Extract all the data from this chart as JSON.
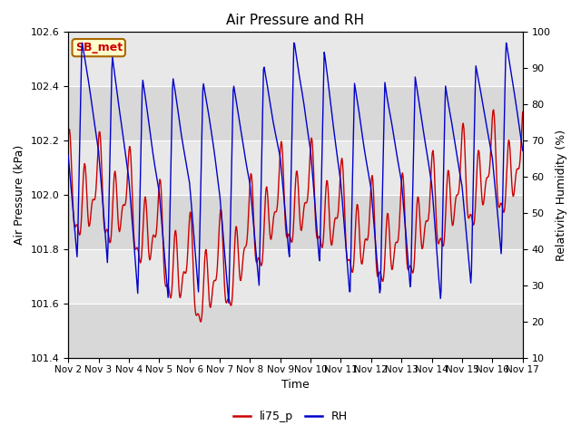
{
  "title": "Air Pressure and RH",
  "xlabel": "Time",
  "ylabel_left": "Air Pressure (kPa)",
  "ylabel_right": "Relativity Humidity (%)",
  "ylim_left": [
    101.4,
    102.6
  ],
  "ylim_right": [
    10,
    100
  ],
  "yticks_left": [
    101.4,
    101.6,
    101.8,
    102.0,
    102.2,
    102.4,
    102.6
  ],
  "yticks_right": [
    10,
    20,
    30,
    40,
    50,
    60,
    70,
    80,
    90,
    100
  ],
  "xtick_labels": [
    "Nov 2",
    "Nov 3",
    "Nov 4",
    "Nov 5",
    "Nov 6",
    "Nov 7",
    "Nov 8",
    "Nov 9",
    "Nov 10",
    "Nov 11",
    "Nov 12",
    "Nov 13",
    "Nov 14",
    "Nov 15",
    "Nov 16",
    "Nov 17"
  ],
  "label_box_text": "SB_met",
  "label_box_facecolor": "#ffffcc",
  "label_box_edgecolor": "#aa6600",
  "label_box_textcolor": "#cc0000",
  "line_li75_color": "#cc0000",
  "line_rh_color": "#0000cc",
  "legend_li75": "li75_p",
  "legend_rh": "RH",
  "plot_bg_light": "#e8e8e8",
  "plot_bg_dark": "#d0d0d0",
  "band_colors": [
    "#d8d8d8",
    "#e8e8e8"
  ],
  "grid_color": "#ffffff",
  "fig_bg": "#ffffff"
}
